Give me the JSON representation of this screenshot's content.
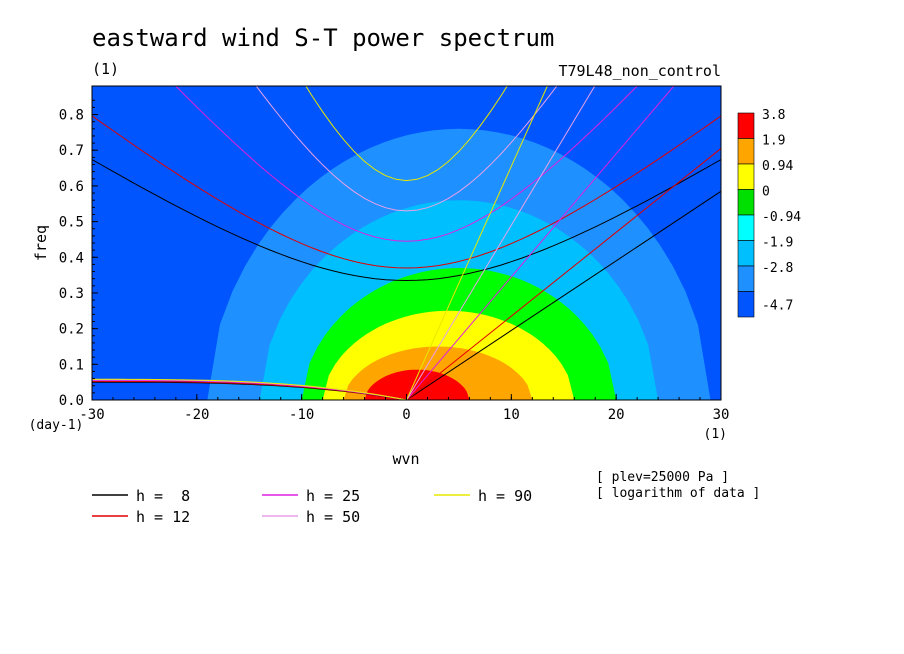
{
  "chart_data": {
    "type": "heatmap",
    "title": "eastward wind S-T power spectrum",
    "subtitle_left": "(1)",
    "subtitle_right": "T79L48_non_control",
    "xlabel": "wvn",
    "ylabel": "freq",
    "x_unit": "(1)",
    "y_unit": "(day-1)",
    "xlim": [
      -30,
      30
    ],
    "ylim": [
      0.0,
      0.88
    ],
    "xticks": [
      "-30",
      "-20",
      "-10",
      "0",
      "10",
      "20",
      "30"
    ],
    "yticks": [
      "0.0",
      "0.1",
      "0.2",
      "0.3",
      "0.4",
      "0.5",
      "0.6",
      "0.7",
      "0.8"
    ],
    "colorbar": {
      "labels": [
        "3.8",
        "1.9",
        "0.94",
        "0",
        "-0.94",
        "-1.9",
        "-2.8",
        "-4.7"
      ],
      "colors": [
        "#ff0000",
        "#ffa500",
        "#ffff00",
        "#00e000",
        "#00ffff",
        "#00bfff",
        "#1e90ff",
        "#0055ff"
      ]
    },
    "contour_bands": [
      {
        "level": "-2.8",
        "color": "#1e90ff",
        "peak_x": 5,
        "half_width_x": 24,
        "top_freq": 0.76
      },
      {
        "level": "-1.9",
        "color": "#00bfff",
        "peak_x": 5,
        "half_width_x": 19,
        "top_freq": 0.56
      },
      {
        "level": "-0.94",
        "color": "#00ff00",
        "peak_x": 5,
        "half_width_x": 15,
        "top_freq": 0.37
      },
      {
        "level": "0",
        "color": "#ffff00",
        "peak_x": 4,
        "half_width_x": 12,
        "top_freq": 0.25
      },
      {
        "level": "0.94",
        "color": "#ffa500",
        "peak_x": 3,
        "half_width_x": 9,
        "top_freq": 0.15
      },
      {
        "level": "1.9",
        "color": "#ff0000",
        "peak_x": 1,
        "half_width_x": 5,
        "top_freq": 0.085
      }
    ],
    "dispersion_curves": {
      "legend": [
        {
          "label": "h =  8",
          "h": 8,
          "color": "#000000"
        },
        {
          "label": "h = 12",
          "h": 12,
          "color": "#e00000"
        },
        {
          "label": "h = 25",
          "h": 25,
          "color": "#e020e0"
        },
        {
          "label": "h = 50",
          "h": 50,
          "color": "#e8a0e8"
        },
        {
          "label": "h = 90",
          "h": 90,
          "color": "#e8e800"
        }
      ],
      "kelvin_slope_freq_per_wvn": {
        "8": 0.0195,
        "12": 0.0235,
        "25": 0.0345,
        "50": 0.049,
        "90": 0.0655
      },
      "inertia_gravity_min_freq": {
        "8": 0.335,
        "12": 0.37,
        "25": 0.445,
        "50": 0.53,
        "90": 0.615
      },
      "rossby_freq_at_wvn_minus_30": {
        "8": 0.05,
        "12": 0.052,
        "25": 0.055,
        "50": 0.057,
        "90": 0.058
      }
    },
    "annotations": [
      "[ plev=25000 Pa ]",
      "[ logarithm of data ]"
    ]
  }
}
